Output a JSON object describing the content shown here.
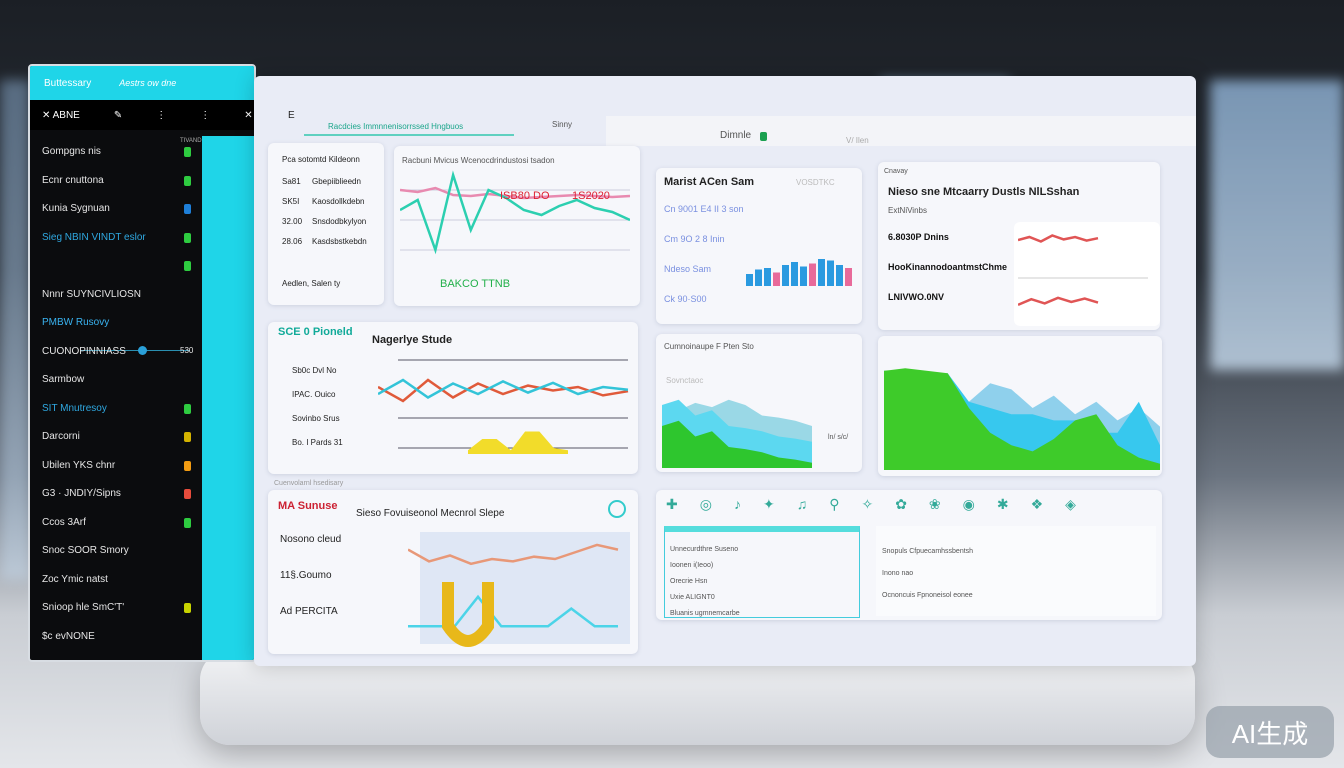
{
  "sidebar": {
    "header": {
      "title": "Buttessary",
      "subtitle": "Aestrs ow dne"
    },
    "toolbar": {
      "label": "ABNE"
    },
    "status": "TIVAND",
    "items": [
      {
        "label": "Gompgns nis",
        "dot": "#2ecc40"
      },
      {
        "label": "Ecnr cnuttona",
        "dot": "#2ecc40"
      },
      {
        "label": "Kunia Sygnuan",
        "dot": "#1e7fd8"
      },
      {
        "label": "Sieg  NBIN VINDT eslor",
        "dot": "#2ecc40",
        "color": "#2fa8e0"
      },
      {
        "label": "",
        "dot": "#2ecc40"
      },
      {
        "label": "Nnnr SUYNCIVLIOSN",
        "dot": ""
      },
      {
        "label": "PMBW  Rusovy",
        "dot": "",
        "color": "#39b3f0"
      },
      {
        "label": "CUONOPINNIASS",
        "value": "530",
        "dot": ""
      },
      {
        "label": "Sarmbow",
        "dot": ""
      },
      {
        "label": "SIT Mnutresoy",
        "dot": "#2ecc40",
        "color": "#2fa8e0"
      },
      {
        "label": "Darcorni",
        "dot": "#d4b300"
      },
      {
        "label": "Ubilen YKS chnr",
        "dot": "#f39c12"
      },
      {
        "label": "G3 · JNDIY/Sipns",
        "dot": "#e74c3c"
      },
      {
        "label": "Ccos 3Arf",
        "dot": "#2ecc40"
      },
      {
        "label": "Snoc SOOR Smory",
        "dot": ""
      },
      {
        "label": "Zoc  Ymic natst",
        "dot": ""
      },
      {
        "label": "Snioop hle SmC'T'",
        "dot": "#c8d400"
      },
      {
        "label": "$c evNONE",
        "dot": ""
      }
    ]
  },
  "topbar": {
    "back": "E",
    "tab1": "Racdcies Immnnenisorrssed Hngbuos",
    "tab2": "Sinny",
    "title": "Dimnle",
    "extra": "V/ Ilen"
  },
  "cards": {
    "a": {
      "title": "Pca  sotomtd Kildeonn",
      "rows": [
        [
          "Sa81",
          "Gbepiiblieedn"
        ],
        [
          "SK5I",
          "Kaosdollkdebn"
        ],
        [
          "32.00",
          "Snsdodbkylyon"
        ],
        [
          "28.06",
          "Kasdsbstkebdn"
        ]
      ],
      "footer": "Aedlen, Salen ty"
    },
    "b": {
      "title": "Racbuni Mvicus  Wcenocdrindustosi tsadon",
      "value1": "ISB80 DO",
      "value2": "1S2020",
      "footer": "BAKCO TTNB",
      "series": [
        [
          60,
          70,
          20,
          95,
          40,
          80,
          72,
          60,
          55,
          64,
          70,
          62,
          58,
          50
        ],
        [
          80,
          78,
          82,
          75,
          74,
          76,
          74,
          72,
          73,
          74,
          75,
          74,
          73,
          74
        ]
      ]
    },
    "c": {
      "title": "Marist ACen Sam",
      "subtitle": "VOSDTKC",
      "rows": [
        "Cn  9001 E4 II  3 son",
        "Cm  9O 2 8 Inin",
        "Ndeso  Sam",
        "Ck  90·S00"
      ],
      "bars": [
        40,
        55,
        60,
        45,
        70,
        80,
        65,
        75,
        90,
        85,
        70,
        60
      ]
    },
    "d": {
      "label": "Cnavay",
      "title": "Nieso sne  Mtcaarry Dustls NlLSshan",
      "subtitle": "ExtNiVinbs",
      "rows": [
        "6.8030P  Dnins",
        "HooKinannodoantmstChme",
        "LNIVWO.0NV"
      ]
    },
    "e": {
      "title": "Nagerlye Stude",
      "brand": "SCE 0 Pioneld",
      "rows": [
        "Sb0c Dvl No",
        "IPAC. Ouico",
        "Sovinbo Srus",
        "Bo. I Pards 31"
      ],
      "series": [
        [
          50,
          30,
          60,
          35,
          55,
          40,
          52,
          45,
          50,
          38,
          44
        ],
        [
          40,
          60,
          35,
          55,
          40,
          58,
          42,
          56,
          40,
          50,
          46
        ]
      ]
    },
    "f": {
      "title": "Cumnoinaupe F Pten Sto",
      "subtitle": "Sovnctaoc",
      "axis": "ln/ s/c/",
      "area1": [
        60,
        55,
        62,
        58,
        65,
        60,
        50,
        48,
        45,
        40
      ],
      "area2": [
        40,
        45,
        30,
        35,
        20,
        18,
        15,
        10,
        8,
        5
      ]
    },
    "g": {
      "area1": [
        70,
        72,
        68,
        60,
        55,
        70,
        65,
        50,
        60,
        45,
        55,
        40,
        50,
        35
      ],
      "area2": [
        80,
        80,
        78,
        78,
        55,
        50,
        45,
        45,
        40,
        40,
        30,
        30,
        55,
        20
      ]
    },
    "h": {
      "header": "Cuenvolarnl  hsedisary",
      "title": "Sieso Fovuiseonol Mecnrol Slepe",
      "brand": "MA Sunuse",
      "rows": [
        "Nosono cleud",
        "11§.Goumo",
        "Ad PERCITA"
      ]
    },
    "i": {
      "rows": [
        "Unnecurdthre Suseno",
        "Ioonen i(Ieoo)",
        "Orecrie Hsn",
        "Uxie ALIGNT0",
        "Bluanis ugmnemcarbe"
      ],
      "rows2": [
        "Snopuls Cfpuecamhssbentsh",
        "Inono nao",
        "Ocnoncuis Fpnoneisol eonee"
      ]
    }
  },
  "watermark": "AI生成"
}
